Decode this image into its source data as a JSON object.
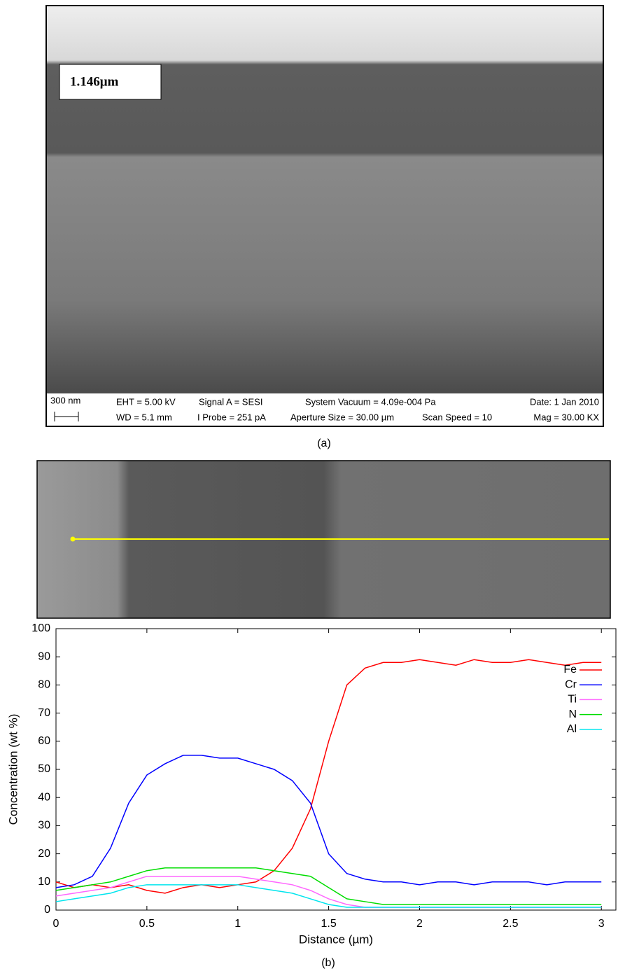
{
  "panel_a": {
    "thickness_label": "1.146μm",
    "scale_bar": "300 nm",
    "info": [
      "EHT = 5.00 kV",
      "Signal A = SESI",
      "System Vacuum = 4.09e-004 Pa",
      "Date: 1 Jan 2010",
      "WD = 5.1 mm",
      "I Probe = 251 pA",
      "Aperture Size = 30.00 µm",
      "Scan Speed = 10",
      "Mag = 30.00 KX"
    ],
    "caption": "(a)"
  },
  "panel_b": {
    "caption": "(b)"
  },
  "chart_data": {
    "type": "line",
    "x_label": "Distance (µm)",
    "y_label": "Concentration (wt %)",
    "x": [
      0,
      0.1,
      0.2,
      0.3,
      0.4,
      0.5,
      0.6,
      0.7,
      0.8,
      0.9,
      1.0,
      1.1,
      1.2,
      1.3,
      1.4,
      1.5,
      1.6,
      1.7,
      1.8,
      1.9,
      2.0,
      2.1,
      2.2,
      2.3,
      2.4,
      2.5,
      2.6,
      2.7,
      2.8,
      2.9,
      3.0
    ],
    "series": [
      {
        "name": "Fe",
        "color": "#ff0000",
        "values": [
          10,
          8,
          9,
          8,
          9,
          7,
          6,
          8,
          9,
          8,
          9,
          10,
          14,
          22,
          36,
          60,
          80,
          86,
          88,
          88,
          89,
          88,
          87,
          89,
          88,
          88,
          89,
          88,
          87,
          88,
          88
        ]
      },
      {
        "name": "Cr",
        "color": "#0000ff",
        "values": [
          8,
          9,
          12,
          22,
          38,
          48,
          52,
          55,
          55,
          54,
          54,
          52,
          50,
          46,
          38,
          20,
          13,
          11,
          10,
          10,
          9,
          10,
          10,
          9,
          10,
          10,
          10,
          9,
          10,
          10,
          10
        ]
      },
      {
        "name": "Ti",
        "color": "#ff66ff",
        "values": [
          5,
          6,
          7,
          8,
          10,
          12,
          12,
          12,
          12,
          12,
          12,
          11,
          10,
          9,
          7,
          4,
          2,
          1,
          1,
          1,
          1,
          1,
          1,
          1,
          1,
          1,
          1,
          1,
          1,
          1,
          1
        ]
      },
      {
        "name": "N",
        "color": "#00dd00",
        "values": [
          7,
          8,
          9,
          10,
          12,
          14,
          15,
          15,
          15,
          15,
          15,
          15,
          14,
          13,
          12,
          8,
          4,
          3,
          2,
          2,
          2,
          2,
          2,
          2,
          2,
          2,
          2,
          2,
          2,
          2,
          2
        ]
      },
      {
        "name": "Al",
        "color": "#00e5ee",
        "values": [
          3,
          4,
          5,
          6,
          8,
          9,
          9,
          9,
          9,
          9,
          9,
          8,
          7,
          6,
          4,
          2,
          1,
          1,
          1,
          1,
          1,
          1,
          1,
          1,
          1,
          1,
          1,
          1,
          1,
          1,
          1
        ]
      }
    ],
    "xlim": [
      0,
      3.08
    ],
    "ylim": [
      0,
      100
    ],
    "xticks": [
      0,
      0.5,
      1,
      1.5,
      2,
      2.5,
      3
    ],
    "yticks": [
      0,
      10,
      20,
      30,
      40,
      50,
      60,
      70,
      80,
      90,
      100
    ],
    "legend": "upper-right"
  }
}
